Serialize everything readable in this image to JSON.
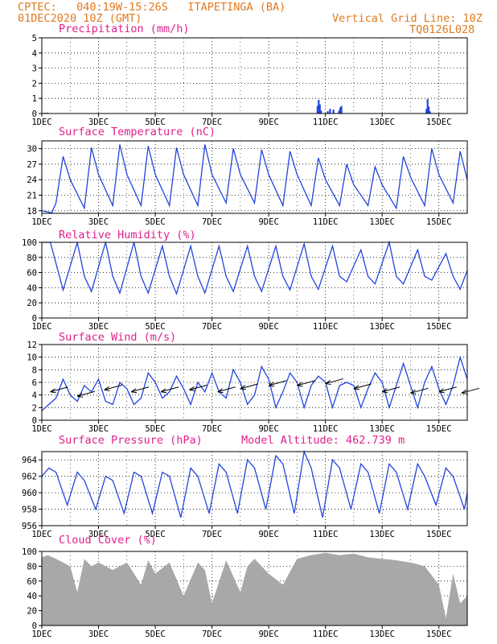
{
  "header": {
    "line1_left": "CPTEC:   040:19W-15:26S   ITAPETINGA (BA)",
    "line2_left": "01DEC2020 10Z (GMT)",
    "line2_right": "Vertical Grid Line: 10Z",
    "line3_right": "TQ0126L028"
  },
  "colors": {
    "line": "#2244dd",
    "title": "#e0208c",
    "header": "#e07a1e",
    "cloud": "#a8a8a8"
  },
  "x_axis": {
    "ticks": [
      "1DEC",
      "3DEC",
      "5DEC",
      "7DEC",
      "9DEC",
      "11DEC",
      "13DEC",
      "15DEC"
    ],
    "range_days": [
      0,
      15
    ]
  },
  "chart_data": [
    {
      "type": "bar",
      "title": "Precipitation (mm/h)",
      "ylim": [
        0,
        5
      ],
      "yticks": [
        "0",
        "1",
        "2",
        "3",
        "4",
        "5"
      ],
      "x_days": [
        0.1,
        0.2,
        9.72,
        9.76,
        9.8,
        9.84,
        10.08,
        10.16,
        10.28,
        10.48,
        10.52,
        10.56,
        13.56,
        13.6,
        13.64,
        13.68
      ],
      "values": [
        0.05,
        0.05,
        0.5,
        0.9,
        0.6,
        0.2,
        0.15,
        0.3,
        0.25,
        0.2,
        0.4,
        0.5,
        0.3,
        0.95,
        0.45,
        0.15
      ]
    },
    {
      "type": "line",
      "title": "Surface Temperature (nC)",
      "ylim": [
        17.5,
        31.5
      ],
      "yticks": [
        "18",
        "21",
        "24",
        "27",
        "30"
      ],
      "x_days": [
        0,
        0.35,
        0.5,
        0.75,
        1.0,
        1.5,
        1.75,
        2.0,
        2.5,
        2.75,
        3.0,
        3.5,
        3.75,
        4.0,
        4.5,
        4.75,
        5.0,
        5.5,
        5.75,
        6.0,
        6.5,
        6.75,
        7.0,
        7.5,
        7.75,
        8.0,
        8.5,
        8.75,
        9.0,
        9.5,
        9.75,
        10.0,
        10.5,
        10.75,
        11.0,
        11.5,
        11.75,
        12.0,
        12.5,
        12.75,
        13.0,
        13.5,
        13.75,
        14.0,
        14.5,
        14.75,
        15.0
      ],
      "values": [
        18.0,
        17.6,
        19.5,
        28.5,
        24.0,
        18.5,
        30.2,
        25.0,
        19.0,
        30.8,
        25.0,
        19.0,
        30.5,
        25.0,
        19.0,
        30.2,
        25.0,
        19.0,
        30.8,
        25.0,
        19.5,
        30.0,
        25.0,
        19.5,
        29.8,
        25.0,
        19.0,
        29.5,
        25.0,
        19.0,
        28.2,
        24.0,
        19.0,
        27.0,
        23.0,
        19.0,
        26.5,
        23.0,
        18.5,
        28.5,
        24.5,
        19.0,
        30.0,
        25.0,
        19.5,
        29.5,
        24.0
      ]
    },
    {
      "type": "line",
      "title": "Relative Humidity (%)",
      "ylim": [
        0,
        100
      ],
      "yticks": [
        "0",
        "20",
        "40",
        "60",
        "80",
        "100"
      ],
      "x_days": [
        0,
        0.3,
        0.75,
        1.25,
        1.5,
        1.75,
        2.25,
        2.5,
        2.75,
        3.25,
        3.5,
        3.75,
        4.25,
        4.5,
        4.75,
        5.25,
        5.5,
        5.75,
        6.25,
        6.5,
        6.75,
        7.25,
        7.5,
        7.75,
        8.25,
        8.5,
        8.75,
        9.25,
        9.5,
        9.75,
        10.25,
        10.5,
        10.75,
        11.25,
        11.5,
        11.75,
        12.25,
        12.5,
        12.75,
        13.25,
        13.5,
        13.75,
        14.25,
        14.5,
        14.75,
        15.0
      ],
      "values": [
        100,
        100,
        37,
        100,
        55,
        35,
        100,
        55,
        33,
        100,
        55,
        33,
        95,
        55,
        32,
        95,
        55,
        33,
        95,
        55,
        35,
        95,
        55,
        35,
        95,
        55,
        37,
        98,
        55,
        38,
        95,
        55,
        48,
        90,
        55,
        45,
        100,
        55,
        45,
        90,
        55,
        50,
        85,
        55,
        38,
        63
      ]
    },
    {
      "type": "line",
      "title": "Surface Wind (m/s)",
      "ylim": [
        0,
        12
      ],
      "yticks": [
        "0",
        "2",
        "4",
        "6",
        "8",
        "10",
        "12"
      ],
      "x_days": [
        0,
        0.25,
        0.5,
        0.75,
        1.0,
        1.25,
        1.5,
        1.75,
        2.0,
        2.25,
        2.5,
        2.75,
        3.0,
        3.25,
        3.5,
        3.75,
        4.0,
        4.25,
        4.5,
        4.75,
        5.0,
        5.25,
        5.5,
        5.75,
        6.0,
        6.25,
        6.5,
        6.75,
        7.0,
        7.25,
        7.5,
        7.75,
        8.0,
        8.25,
        8.5,
        8.75,
        9.0,
        9.25,
        9.5,
        9.75,
        10.0,
        10.25,
        10.5,
        10.75,
        11.0,
        11.25,
        11.5,
        11.75,
        12.0,
        12.25,
        12.5,
        12.75,
        13.0,
        13.25,
        13.5,
        13.75,
        14.0,
        14.25,
        14.5,
        14.75,
        15.0
      ],
      "values": [
        1.5,
        2.5,
        3.5,
        6.5,
        4.0,
        3.0,
        5.5,
        4.5,
        6.5,
        3.0,
        2.5,
        6.0,
        5.0,
        2.5,
        3.5,
        7.5,
        6.0,
        3.5,
        4.5,
        7.0,
        5.0,
        2.5,
        6.0,
        4.5,
        7.5,
        4.5,
        3.5,
        8.0,
        6.0,
        2.5,
        4.0,
        8.5,
        6.5,
        2.0,
        4.5,
        7.5,
        6.0,
        2.0,
        5.5,
        7.0,
        6.0,
        2.0,
        5.5,
        6.0,
        5.5,
        2.0,
        5.0,
        7.5,
        6.0,
        2.0,
        5.5,
        9.0,
        5.5,
        2.0,
        6.0,
        8.5,
        5.0,
        2.5,
        5.5,
        10.0,
        6.5
      ],
      "arrows": {
        "x_days": [
          0.3,
          1.25,
          2.2,
          3.15,
          4.2,
          5.2,
          6.2,
          7.0,
          8.0,
          9.0,
          10.0,
          11.0,
          12.0,
          13.0,
          14.0,
          14.8
        ],
        "y": [
          4.5,
          3.8,
          4.8,
          4.5,
          4.5,
          4.8,
          4.5,
          5.0,
          5.5,
          5.5,
          5.8,
          5.0,
          4.5,
          4.3,
          4.5,
          4.3
        ]
      }
    },
    {
      "type": "line",
      "title": "Surface Pressure (hPa)",
      "subtitle": "Model Altitude: 462.739 m",
      "ylim": [
        956,
        965
      ],
      "yticks": [
        "956",
        "958",
        "960",
        "962",
        "964"
      ],
      "x_days": [
        0,
        0.25,
        0.5,
        0.9,
        1.25,
        1.5,
        1.9,
        2.25,
        2.5,
        2.9,
        3.25,
        3.5,
        3.9,
        4.25,
        4.5,
        4.9,
        5.25,
        5.5,
        5.9,
        6.25,
        6.5,
        6.9,
        7.25,
        7.5,
        7.9,
        8.25,
        8.5,
        8.9,
        9.25,
        9.5,
        9.9,
        10.25,
        10.5,
        10.9,
        11.25,
        11.5,
        11.9,
        12.25,
        12.5,
        12.9,
        13.25,
        13.5,
        13.9,
        14.25,
        14.5,
        14.9,
        15.0
      ],
      "values": [
        962.0,
        963.0,
        962.5,
        958.5,
        962.5,
        961.5,
        958.0,
        962.0,
        961.5,
        957.5,
        962.5,
        962.0,
        957.5,
        962.5,
        962.0,
        957.0,
        963.0,
        962.0,
        957.5,
        963.5,
        962.5,
        957.5,
        964.0,
        963.0,
        958.0,
        964.5,
        963.5,
        957.5,
        965.0,
        963.0,
        957.0,
        964.0,
        963.0,
        958.0,
        963.5,
        962.5,
        957.5,
        963.5,
        962.5,
        958.0,
        963.5,
        962.0,
        958.5,
        963.0,
        962.0,
        958.0,
        960.0
      ]
    },
    {
      "type": "area",
      "title": "Cloud Cover (%)",
      "ylim": [
        0,
        100
      ],
      "yticks": [
        "0",
        "20",
        "40",
        "60",
        "80",
        "100"
      ],
      "x_days": [
        0,
        0.2,
        0.5,
        1.0,
        1.25,
        1.5,
        1.75,
        2.0,
        2.5,
        3.0,
        3.5,
        3.75,
        4.0,
        4.5,
        5.0,
        5.5,
        5.75,
        6.0,
        6.5,
        7.0,
        7.25,
        7.5,
        8.0,
        8.5,
        9.0,
        9.5,
        10.0,
        10.5,
        11.0,
        11.5,
        12.0,
        12.5,
        13.0,
        13.5,
        14.0,
        14.25,
        14.5,
        14.75,
        15.0
      ],
      "values": [
        92,
        95,
        90,
        80,
        45,
        90,
        80,
        85,
        75,
        85,
        55,
        88,
        70,
        85,
        40,
        85,
        75,
        30,
        88,
        45,
        80,
        90,
        70,
        55,
        90,
        95,
        98,
        95,
        97,
        92,
        90,
        88,
        85,
        80,
        55,
        10,
        70,
        30,
        40
      ]
    }
  ]
}
